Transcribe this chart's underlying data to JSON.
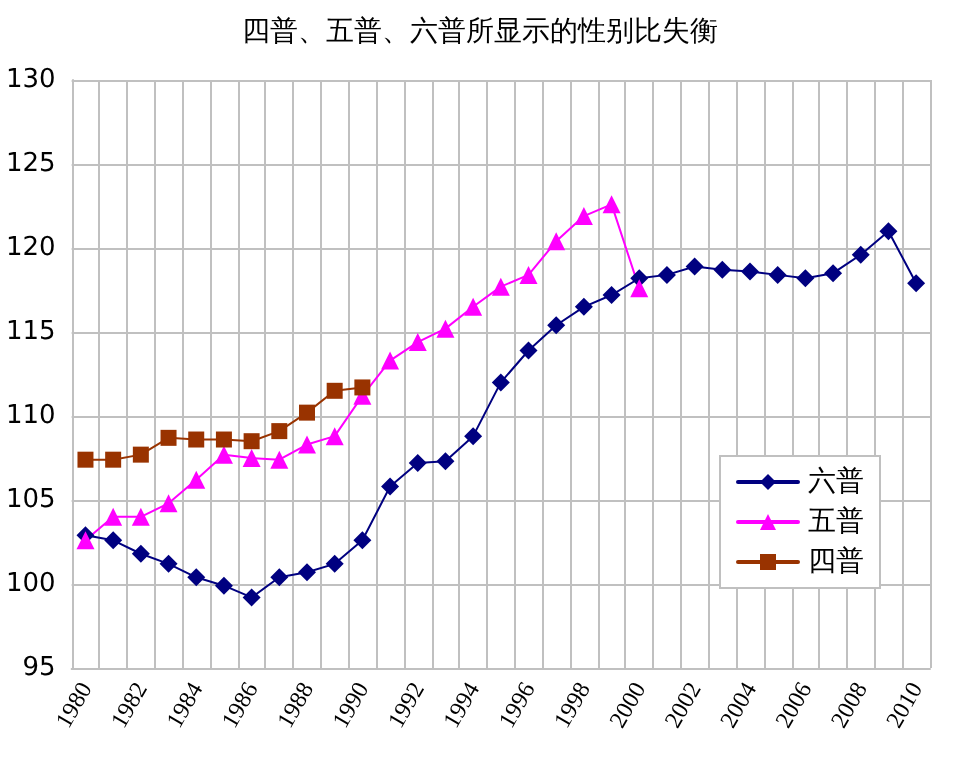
{
  "chart_data": {
    "type": "line",
    "title": "四普、五普、六普所显示的性别比失衡",
    "categories": [
      "1980",
      null,
      "1982",
      null,
      "1984",
      null,
      "1986",
      null,
      "1988",
      null,
      "1990",
      null,
      "1992",
      null,
      "1994",
      null,
      "1996",
      null,
      "1998",
      null,
      "2000",
      null,
      "2002",
      null,
      "2004",
      null,
      "2006",
      null,
      "2008",
      null,
      "2010"
    ],
    "series": [
      {
        "name": "六普",
        "color": "#000080",
        "marker": "diamond",
        "values": [
          102.9,
          102.6,
          101.8,
          101.2,
          100.4,
          99.9,
          99.2,
          100.4,
          100.7,
          101.2,
          102.6,
          105.8,
          107.2,
          107.3,
          108.8,
          112.0,
          113.9,
          115.4,
          116.5,
          117.2,
          118.2,
          118.4,
          118.9,
          118.7,
          118.6,
          118.4,
          118.2,
          118.5,
          119.6,
          121.0,
          117.9
        ]
      },
      {
        "name": "五普",
        "color": "#ff00ff",
        "marker": "triangle",
        "values": [
          102.6,
          104.0,
          104.0,
          104.8,
          106.2,
          107.7,
          107.5,
          107.4,
          108.3,
          108.8,
          111.2,
          113.3,
          114.4,
          115.2,
          116.5,
          117.7,
          118.4,
          120.4,
          121.9,
          122.6,
          117.6,
          null,
          null,
          null,
          null,
          null,
          null,
          null,
          null,
          null,
          null
        ]
      },
      {
        "name": "四普",
        "color": "#993300",
        "marker": "square",
        "values": [
          107.4,
          107.4,
          107.7,
          108.7,
          108.6,
          108.6,
          108.5,
          109.1,
          110.2,
          111.5,
          111.7,
          null,
          null,
          null,
          null,
          null,
          null,
          null,
          null,
          null,
          null,
          null,
          null,
          null,
          null,
          null,
          null,
          null,
          null,
          null,
          null
        ]
      }
    ],
    "ylim": [
      95,
      130
    ],
    "yticks": [
      95,
      100,
      105,
      110,
      115,
      120,
      125,
      130
    ],
    "grid": true,
    "legend": "bottom right"
  }
}
